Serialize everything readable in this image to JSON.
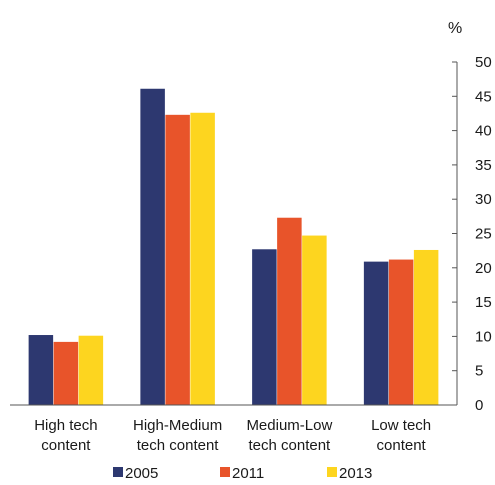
{
  "chart_data": {
    "type": "bar",
    "unit": "%",
    "categories": [
      [
        "High tech",
        "content"
      ],
      [
        "High-Medium",
        "tech content"
      ],
      [
        "Medium-Low",
        "tech content"
      ],
      [
        "Low tech",
        "content"
      ]
    ],
    "series": [
      {
        "name": "2005",
        "color": "#2d3870",
        "values": [
          10.2,
          46.1,
          22.7,
          20.9
        ]
      },
      {
        "name": "2011",
        "color": "#e8542a",
        "values": [
          9.2,
          42.3,
          27.3,
          21.2
        ]
      },
      {
        "name": "2013",
        "color": "#fdd51f",
        "values": [
          10.1,
          42.6,
          24.7,
          22.6
        ]
      }
    ],
    "y_axis": {
      "position": "right",
      "min": 0,
      "max": 50,
      "step": 5
    },
    "ylim": [
      0,
      50
    ],
    "legend": {
      "placement": "bottom"
    },
    "grid": false
  }
}
